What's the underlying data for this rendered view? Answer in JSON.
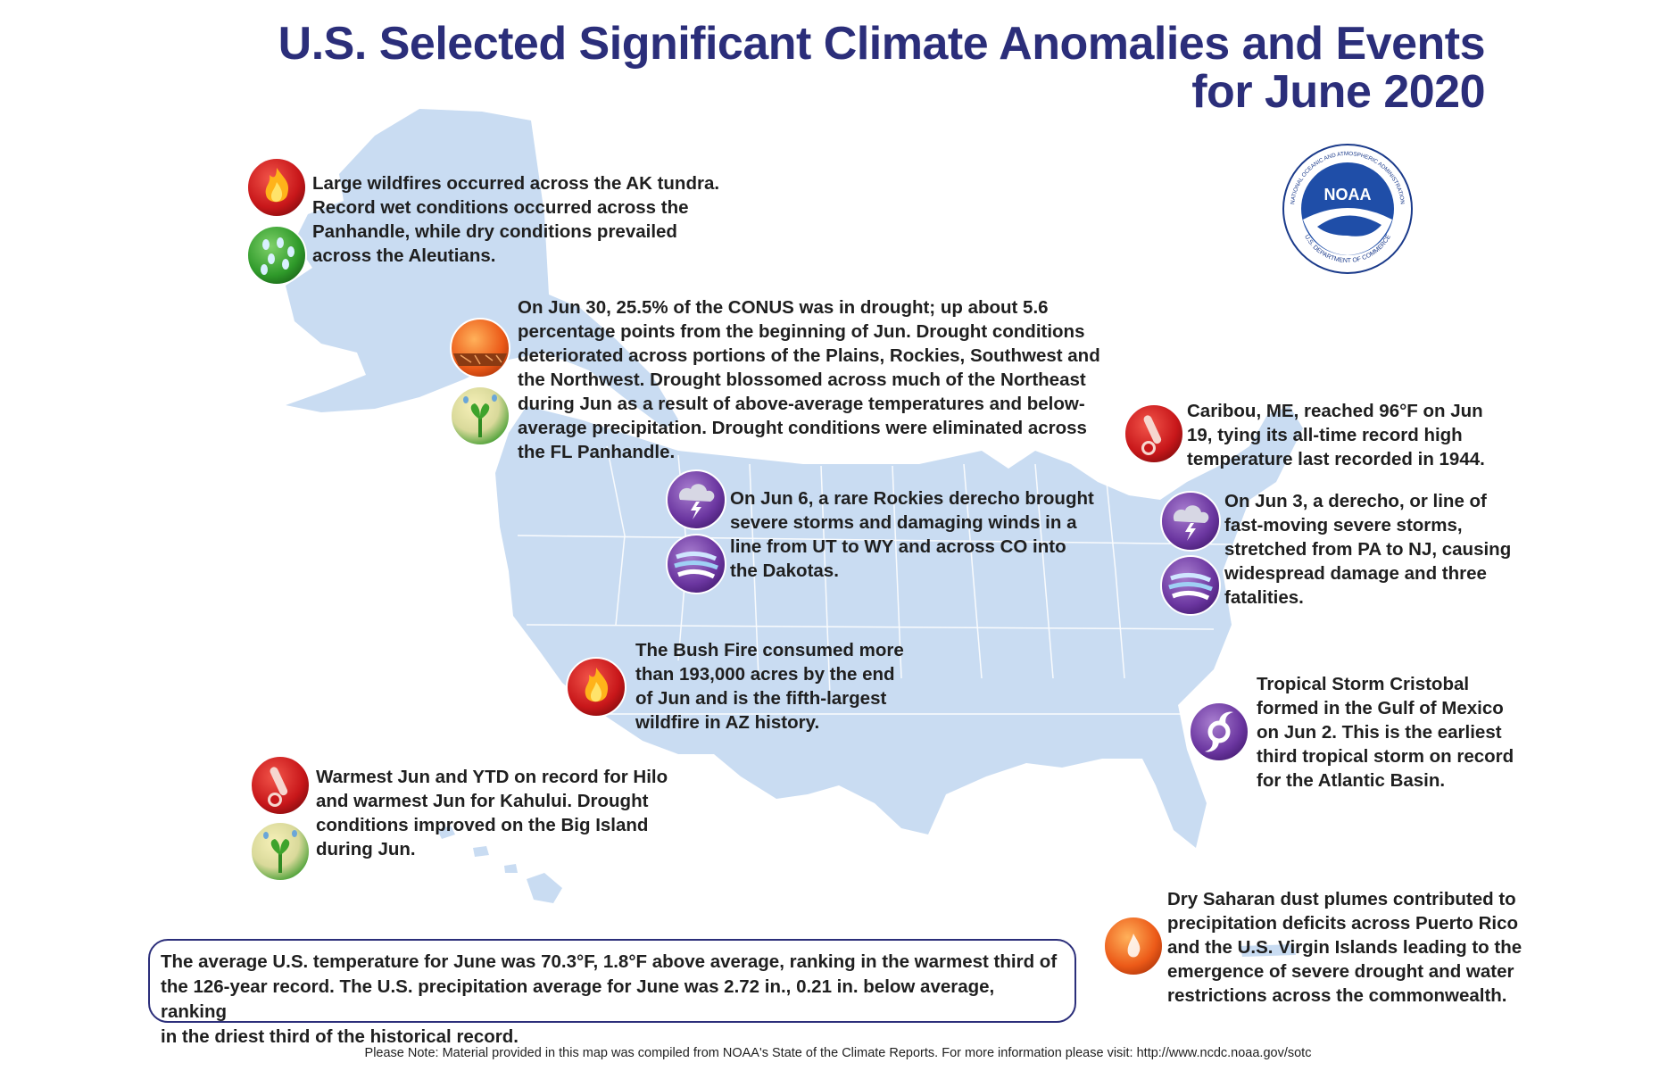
{
  "title": {
    "line1": "U.S. Selected Significant Climate Anomalies and Events",
    "line2": "for June 2020"
  },
  "logo": {
    "text": "NOAA",
    "ring_top": "NATIONAL OCEANIC AND ATMOSPHERIC ADMINISTRATION",
    "ring_bottom": "U.S. DEPARTMENT OF COMMERCE"
  },
  "colors": {
    "title": "#2b2e7a",
    "land": "#c9dcf2",
    "state_lines": "#ffffff",
    "fire_icon": "#d7261e",
    "precip_icon": "#3a9a3a",
    "storm_icon": "#7a3fa0",
    "drought_icon": "#e8601c"
  },
  "events": {
    "alaska": {
      "lines": [
        "Large wildfires occurred across the AK tundra.",
        "Record wet conditions occurred across the",
        "Panhandle, while dry conditions prevailed",
        "across the Aleutians."
      ],
      "icons": [
        "wildfire-icon",
        "wet-conditions-icon"
      ]
    },
    "drought": {
      "lines": [
        "On Jun 30, 25.5% of the CONUS was in drought; up about 5.6",
        "percentage points from the beginning of Jun. Drought conditions",
        "deteriorated across portions of the Plains, Rockies, Southwest and",
        "the Northwest. Drought blossomed across much of the Northeast",
        "during Jun as a result of above-average temperatures and below-",
        "average precipitation. Drought conditions were eliminated across",
        "the FL Panhandle."
      ],
      "icons": [
        "drought-icon",
        "drought-improvement-icon"
      ]
    },
    "caribou": {
      "lines": [
        "Caribou, ME, reached 96°F on Jun",
        "19, tying its all-time record high",
        "temperature last recorded in 1944."
      ],
      "icons": [
        "heat-thermometer-icon"
      ]
    },
    "rockies_derecho": {
      "lines": [
        "On Jun 6, a rare Rockies derecho brought",
        "severe storms and damaging winds in a",
        "line from UT to WY and across CO into",
        "the Dakotas."
      ],
      "icons": [
        "severe-storm-icon",
        "damaging-wind-icon"
      ]
    },
    "east_derecho": {
      "lines": [
        "On Jun 3, a derecho, or line of",
        "fast-moving severe storms,",
        "stretched from PA to NJ, causing",
        "widespread damage and three",
        "fatalities."
      ],
      "icons": [
        "severe-storm-icon",
        "damaging-wind-icon"
      ]
    },
    "bush_fire": {
      "lines": [
        "The Bush Fire consumed more",
        "than 193,000 acres by the end",
        "of Jun and is the fifth-largest",
        "wildfire in AZ history."
      ],
      "icons": [
        "wildfire-icon"
      ]
    },
    "cristobal": {
      "lines": [
        "Tropical Storm Cristobal",
        "formed in the Gulf of Mexico",
        "on Jun 2. This is the earliest",
        "third tropical storm on record",
        "for the Atlantic Basin."
      ],
      "icons": [
        "tropical-storm-icon"
      ]
    },
    "hawaii": {
      "lines": [
        "Warmest Jun and YTD on record for Hilo",
        "and warmest Jun for Kahului. Drought",
        "conditions improved on the Big Island",
        "during Jun."
      ],
      "icons": [
        "heat-thermometer-icon",
        "drought-improvement-icon"
      ]
    },
    "puerto_rico": {
      "lines": [
        "Dry Saharan dust plumes contributed to",
        "precipitation deficits across Puerto Rico",
        "and the U.S. Virgin Islands leading to the",
        "emergence of severe drought and water",
        "restrictions across the commonwealth."
      ],
      "icons": [
        "drought-heat-icon"
      ]
    }
  },
  "summary": {
    "lines": [
      "The average U.S. temperature for June was 70.3°F, 1.8°F above average, ranking in the warmest third of",
      "the 126-year record. The U.S. precipitation average for June was 2.72 in., 0.21 in. below average, ranking",
      "in the driest third of the historical record."
    ]
  },
  "footnote": "Please Note: Material provided in this map was compiled from NOAA's State of the Climate Reports. For more information please visit: http://www.ncdc.noaa.gov/sotc"
}
